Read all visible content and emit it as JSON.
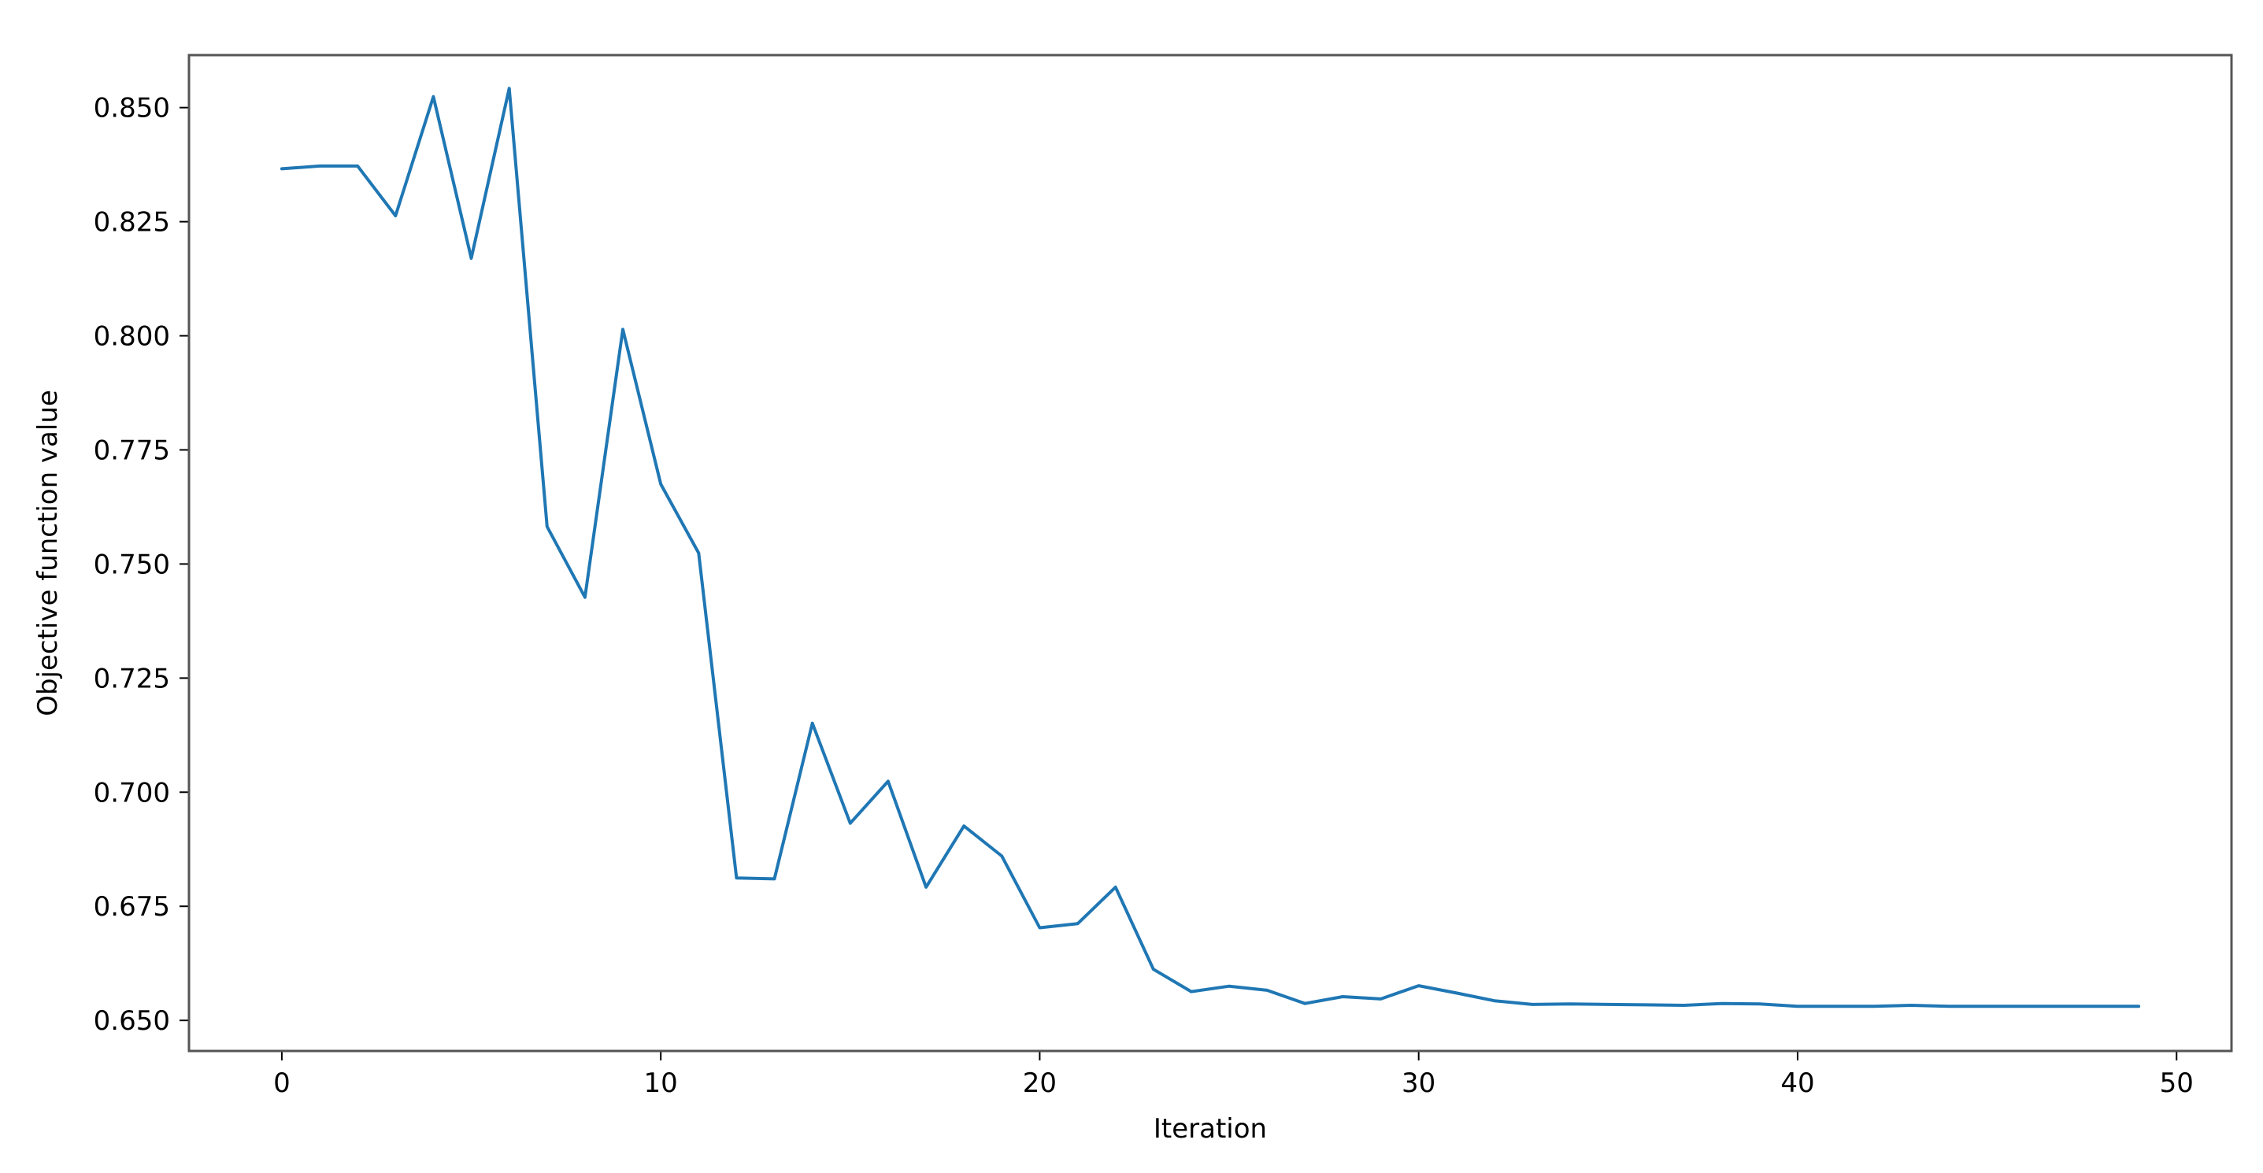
{
  "chart_data": {
    "type": "line",
    "title": "",
    "xlabel": "Iteration",
    "ylabel": "Objective function value",
    "xlim": [
      -2.45,
      51.45
    ],
    "ylim": [
      0.6433,
      0.8615
    ],
    "x_ticks": [
      0,
      10,
      20,
      30,
      40,
      50
    ],
    "x_tick_labels": [
      "0",
      "10",
      "20",
      "30",
      "40",
      "50"
    ],
    "y_ticks": [
      0.65,
      0.675,
      0.7,
      0.725,
      0.75,
      0.775,
      0.8,
      0.825,
      0.85
    ],
    "y_tick_labels": [
      "0.650",
      "0.675",
      "0.700",
      "0.725",
      "0.750",
      "0.775",
      "0.800",
      "0.825",
      "0.850"
    ],
    "grid": false,
    "legend": false,
    "line_color": "#1f77b4",
    "series": [
      {
        "x": [
          0,
          1,
          2,
          3,
          4,
          5,
          6,
          7,
          8,
          9,
          10,
          11,
          12,
          13,
          14,
          15,
          16,
          17,
          18,
          19,
          20,
          21,
          22,
          23,
          24,
          25,
          26,
          27,
          28,
          29,
          30,
          31,
          32,
          33,
          34,
          35,
          36,
          37,
          38,
          39,
          40,
          41,
          42,
          43,
          44,
          45,
          46,
          47,
          48,
          49
        ],
        "values": [
          0.8366,
          0.8372,
          0.8372,
          0.8263,
          0.8524,
          0.817,
          0.8542,
          0.7582,
          0.7427,
          0.8014,
          0.7675,
          0.7524,
          0.6812,
          0.681,
          0.7151,
          0.6932,
          0.7024,
          0.6792,
          0.6926,
          0.686,
          0.6703,
          0.6712,
          0.6792,
          0.6612,
          0.6563,
          0.6575,
          0.6566,
          0.6537,
          0.6552,
          0.6547,
          0.6576,
          0.656,
          0.6543,
          0.6535,
          0.6536,
          0.6535,
          0.6534,
          0.6533,
          0.6537,
          0.6536,
          0.6531,
          0.6531,
          0.6531,
          0.6533,
          0.6531,
          0.6531,
          0.6531,
          0.6531,
          0.6531,
          0.6531
        ]
      }
    ]
  }
}
